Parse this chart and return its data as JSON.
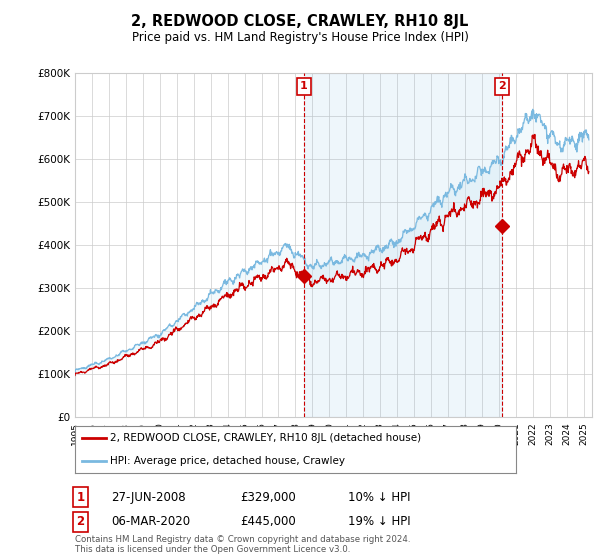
{
  "title": "2, REDWOOD CLOSE, CRAWLEY, RH10 8JL",
  "subtitle": "Price paid vs. HM Land Registry's House Price Index (HPI)",
  "ylim": [
    0,
    800000
  ],
  "xlim_start": 1995.0,
  "xlim_end": 2025.5,
  "hpi_color": "#7ab9e0",
  "price_color": "#cc0000",
  "fill_color": "#daeef8",
  "marker1_date": 2008.49,
  "marker1_price": 329000,
  "marker1_date_str": "27-JUN-2008",
  "marker1_pct": "10% ↓ HPI",
  "marker2_date": 2020.17,
  "marker2_price": 445000,
  "marker2_date_str": "06-MAR-2020",
  "marker2_pct": "19% ↓ HPI",
  "legend_line1": "2, REDWOOD CLOSE, CRAWLEY, RH10 8JL (detached house)",
  "legend_line2": "HPI: Average price, detached house, Crawley",
  "footer1": "Contains HM Land Registry data © Crown copyright and database right 2024.",
  "footer2": "This data is licensed under the Open Government Licence v3.0.",
  "background_color": "#ffffff",
  "grid_color": "#cccccc"
}
